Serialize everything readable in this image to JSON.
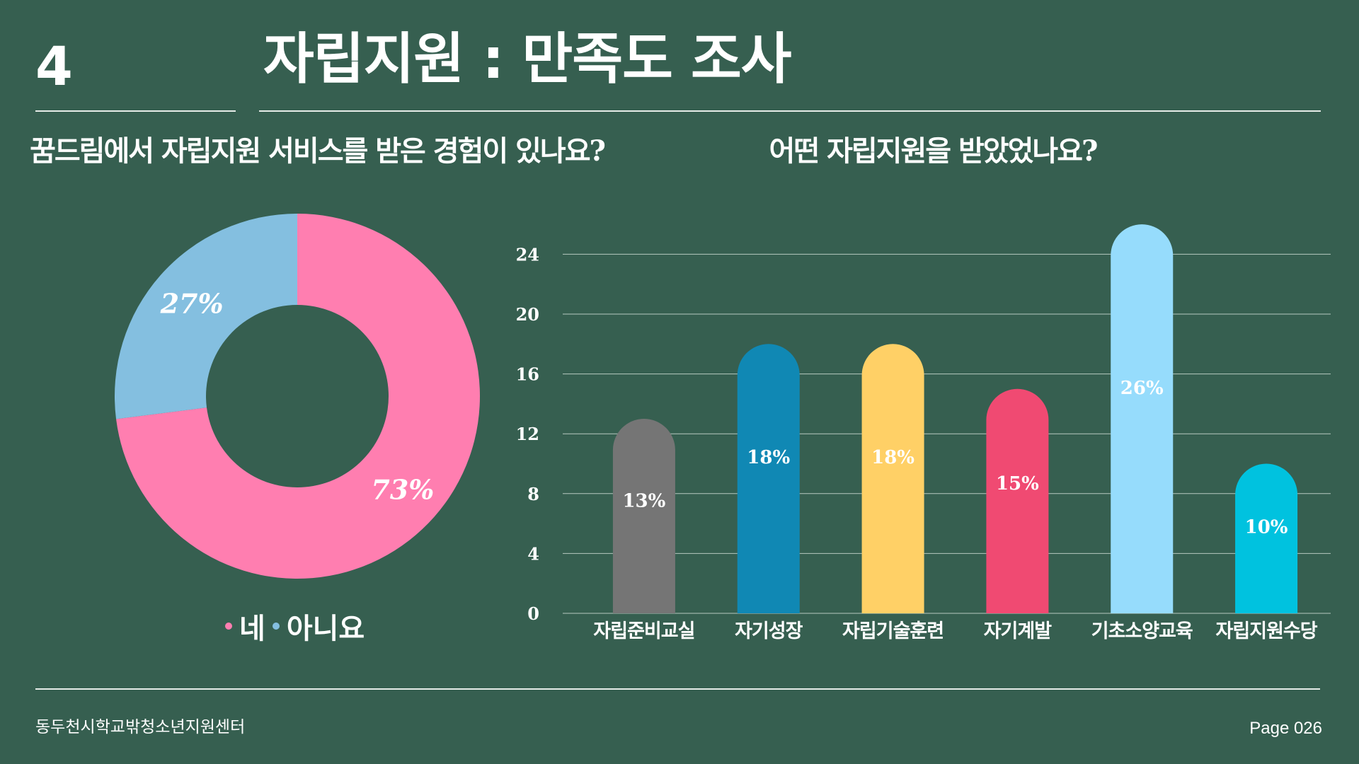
{
  "slide": {
    "number": "4",
    "title": "자립지원 : 만족도 조사"
  },
  "footer": {
    "organization": "동두천시학교밖청소년지원센터",
    "page": "Page 026"
  },
  "colors": {
    "background": "#365f50",
    "yes": "#ff7eb0",
    "no": "#84bfe0"
  },
  "chart_data": [
    {
      "type": "pie",
      "title": "꿈드림에서 자립지원 서비스를 받은 경험이 있나요?",
      "donut": true,
      "slices": [
        {
          "label": "네",
          "value": 73,
          "display": "73%",
          "color": "#ff7eb0"
        },
        {
          "label": "아니요",
          "value": 27,
          "display": "27%",
          "color": "#84bfe0"
        }
      ],
      "legend_position": "bottom"
    },
    {
      "type": "bar",
      "title": "어떤 자립지원을 받았었나요?",
      "categories": [
        "자립준비교실",
        "자기성장",
        "자립기술훈련",
        "자기계발",
        "기초소양교육",
        "자립지원수당"
      ],
      "values": [
        13,
        18,
        18,
        15,
        26,
        10
      ],
      "labels": [
        "13%",
        "18%",
        "18%",
        "15%",
        "26%",
        "10%"
      ],
      "colors": [
        "#757575",
        "#1088b4",
        "#ffd066",
        "#f04a72",
        "#96dcfc",
        "#00c2df"
      ],
      "ylim": [
        0,
        26
      ],
      "yticks": [
        "0",
        "4",
        "8",
        "12",
        "16",
        "20",
        "24"
      ],
      "grid": true
    }
  ]
}
